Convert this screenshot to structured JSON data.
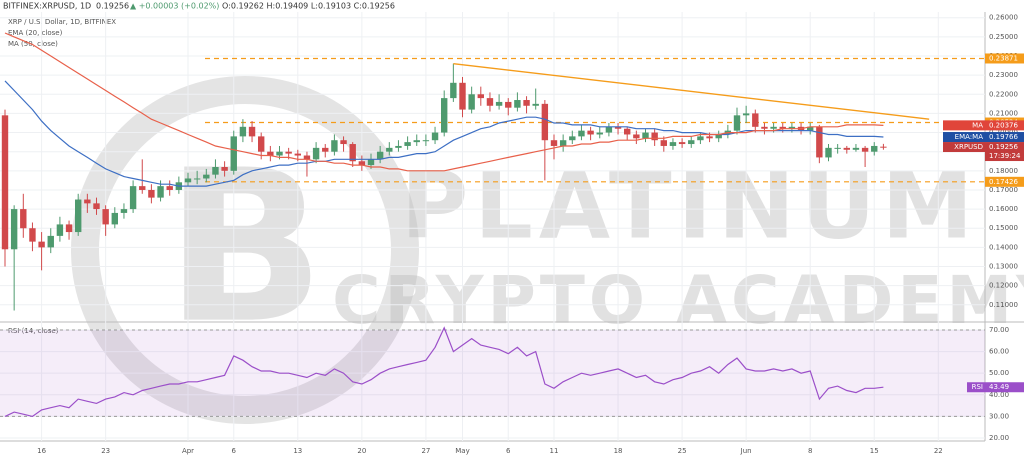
{
  "chart_data": {
    "type": "candlestick",
    "header": {
      "symbol": "BITFINEX:XRPUSD, 1D",
      "price": "0.19256",
      "change": "▲ +0.00003 (+0.02%)",
      "ohlc": "O:0.19262 H:0.19409 L:0.19103 C:0.19256"
    },
    "legend": [
      "XRP / U.S. Dollar, 1D, BITFINEX",
      "EMA (20, close)",
      "MA (50, close)"
    ],
    "watermark": {
      "line1": "PLATINUM",
      "line2": "CRYPTO ACADEMY"
    },
    "up_color": "#4e9a6e",
    "down_color": "#d1494b",
    "categories": [
      null,
      null,
      null,
      null,
      "16",
      null,
      null,
      null,
      null,
      null,
      null,
      "23",
      null,
      null,
      null,
      null,
      null,
      null,
      null,
      null,
      "Apr",
      null,
      null,
      null,
      null,
      "6",
      null,
      null,
      null,
      null,
      null,
      null,
      "13",
      null,
      null,
      null,
      null,
      null,
      null,
      "20",
      null,
      null,
      null,
      null,
      null,
      null,
      "27",
      null,
      null,
      null,
      "May",
      null,
      null,
      null,
      null,
      "6",
      null,
      null,
      null,
      null,
      "11",
      null,
      null,
      null,
      null,
      null,
      null,
      "18",
      null,
      null,
      null,
      null,
      null,
      null,
      "25",
      null,
      null,
      null,
      null,
      null,
      null,
      "Jun",
      null,
      null,
      null,
      null,
      null,
      null,
      "8",
      null,
      null,
      null,
      null,
      null,
      null,
      "15",
      null,
      null,
      null,
      null,
      null,
      null,
      "22"
    ],
    "ohlc": [
      [
        0.209,
        0.212,
        0.13,
        0.139
      ],
      [
        0.139,
        0.162,
        0.107,
        0.16
      ],
      [
        0.16,
        0.168,
        0.145,
        0.15
      ],
      [
        0.15,
        0.153,
        0.138,
        0.143
      ],
      [
        0.143,
        0.148,
        0.128,
        0.14
      ],
      [
        0.14,
        0.15,
        0.137,
        0.146
      ],
      [
        0.146,
        0.156,
        0.143,
        0.152
      ],
      [
        0.152,
        0.154,
        0.144,
        0.148
      ],
      [
        0.148,
        0.168,
        0.146,
        0.165
      ],
      [
        0.165,
        0.168,
        0.158,
        0.163
      ],
      [
        0.163,
        0.166,
        0.157,
        0.16
      ],
      [
        0.16,
        0.162,
        0.146,
        0.152
      ],
      [
        0.152,
        0.161,
        0.15,
        0.158
      ],
      [
        0.158,
        0.163,
        0.155,
        0.16
      ],
      [
        0.16,
        0.175,
        0.158,
        0.172
      ],
      [
        0.172,
        0.186,
        0.168,
        0.17
      ],
      [
        0.17,
        0.173,
        0.163,
        0.166
      ],
      [
        0.166,
        0.175,
        0.164,
        0.172
      ],
      [
        0.172,
        0.175,
        0.167,
        0.17
      ],
      [
        0.17,
        0.177,
        0.168,
        0.174
      ],
      [
        0.174,
        0.179,
        0.172,
        0.176
      ],
      [
        0.176,
        0.18,
        0.173,
        0.176
      ],
      [
        0.176,
        0.181,
        0.174,
        0.178
      ],
      [
        0.178,
        0.186,
        0.176,
        0.182
      ],
      [
        0.182,
        0.185,
        0.177,
        0.18
      ],
      [
        0.18,
        0.201,
        0.178,
        0.198
      ],
      [
        0.198,
        0.207,
        0.195,
        0.203
      ],
      [
        0.203,
        0.206,
        0.195,
        0.198
      ],
      [
        0.198,
        0.2,
        0.186,
        0.19
      ],
      [
        0.19,
        0.193,
        0.185,
        0.188
      ],
      [
        0.188,
        0.193,
        0.186,
        0.19
      ],
      [
        0.19,
        0.192,
        0.186,
        0.189
      ],
      [
        0.189,
        0.191,
        0.185,
        0.188
      ],
      [
        0.188,
        0.19,
        0.177,
        0.186
      ],
      [
        0.186,
        0.195,
        0.184,
        0.192
      ],
      [
        0.192,
        0.194,
        0.187,
        0.19
      ],
      [
        0.19,
        0.199,
        0.188,
        0.196
      ],
      [
        0.196,
        0.198,
        0.19,
        0.194
      ],
      [
        0.194,
        0.195,
        0.182,
        0.185
      ],
      [
        0.185,
        0.188,
        0.18,
        0.183
      ],
      [
        0.183,
        0.189,
        0.181,
        0.186
      ],
      [
        0.186,
        0.193,
        0.184,
        0.19
      ],
      [
        0.19,
        0.195,
        0.188,
        0.192
      ],
      [
        0.192,
        0.196,
        0.19,
        0.193
      ],
      [
        0.193,
        0.198,
        0.191,
        0.195
      ],
      [
        0.195,
        0.199,
        0.193,
        0.196
      ],
      [
        0.196,
        0.199,
        0.193,
        0.196
      ],
      [
        0.196,
        0.203,
        0.194,
        0.2
      ],
      [
        0.2,
        0.222,
        0.198,
        0.218
      ],
      [
        0.218,
        0.236,
        0.216,
        0.226
      ],
      [
        0.226,
        0.229,
        0.208,
        0.212
      ],
      [
        0.212,
        0.224,
        0.21,
        0.22
      ],
      [
        0.22,
        0.224,
        0.214,
        0.218
      ],
      [
        0.218,
        0.221,
        0.211,
        0.214
      ],
      [
        0.214,
        0.22,
        0.212,
        0.216
      ],
      [
        0.216,
        0.218,
        0.209,
        0.213
      ],
      [
        0.213,
        0.221,
        0.211,
        0.217
      ],
      [
        0.217,
        0.219,
        0.21,
        0.214
      ],
      [
        0.214,
        0.223,
        0.212,
        0.215
      ],
      [
        0.215,
        0.217,
        0.175,
        0.196
      ],
      [
        0.196,
        0.199,
        0.186,
        0.193
      ],
      [
        0.193,
        0.199,
        0.19,
        0.196
      ],
      [
        0.196,
        0.201,
        0.194,
        0.198
      ],
      [
        0.198,
        0.204,
        0.196,
        0.201
      ],
      [
        0.201,
        0.203,
        0.196,
        0.199
      ],
      [
        0.199,
        0.203,
        0.197,
        0.2
      ],
      [
        0.2,
        0.205,
        0.198,
        0.203
      ],
      [
        0.203,
        0.205,
        0.199,
        0.202
      ],
      [
        0.202,
        0.203,
        0.196,
        0.199
      ],
      [
        0.199,
        0.201,
        0.194,
        0.197
      ],
      [
        0.197,
        0.202,
        0.195,
        0.2
      ],
      [
        0.2,
        0.202,
        0.193,
        0.196
      ],
      [
        0.196,
        0.198,
        0.19,
        0.193
      ],
      [
        0.193,
        0.197,
        0.191,
        0.195
      ],
      [
        0.195,
        0.197,
        0.192,
        0.194
      ],
      [
        0.194,
        0.198,
        0.192,
        0.196
      ],
      [
        0.196,
        0.2,
        0.194,
        0.198
      ],
      [
        0.198,
        0.2,
        0.195,
        0.197
      ],
      [
        0.197,
        0.201,
        0.195,
        0.199
      ],
      [
        0.199,
        0.204,
        0.197,
        0.201
      ],
      [
        0.201,
        0.213,
        0.199,
        0.209
      ],
      [
        0.209,
        0.214,
        0.205,
        0.21
      ],
      [
        0.21,
        0.212,
        0.2,
        0.203
      ],
      [
        0.203,
        0.205,
        0.199,
        0.202
      ],
      [
        0.202,
        0.205,
        0.2,
        0.203
      ],
      [
        0.203,
        0.205,
        0.2,
        0.202
      ],
      [
        0.202,
        0.205,
        0.2,
        0.203
      ],
      [
        0.203,
        0.205,
        0.199,
        0.201
      ],
      [
        0.201,
        0.205,
        0.199,
        0.203
      ],
      [
        0.203,
        0.204,
        0.184,
        0.187
      ],
      [
        0.187,
        0.194,
        0.185,
        0.192
      ],
      [
        0.192,
        0.194,
        0.189,
        0.192
      ],
      [
        0.192,
        0.193,
        0.189,
        0.191
      ],
      [
        0.191,
        0.194,
        0.19,
        0.192
      ],
      [
        0.192,
        0.193,
        0.182,
        0.19
      ],
      [
        0.19,
        0.195,
        0.188,
        0.193
      ],
      [
        0.19262,
        0.19409,
        0.19103,
        0.19256
      ],
      null,
      null,
      null,
      null,
      null,
      null
    ],
    "series": [
      {
        "name": "EMA (20, close)",
        "color": "#3d6fc4",
        "values": [
          0.227,
          0.222,
          0.217,
          0.212,
          0.206,
          0.201,
          0.197,
          0.193,
          0.19,
          0.187,
          0.184,
          0.181,
          0.179,
          0.177,
          0.176,
          0.175,
          0.174,
          0.173,
          0.173,
          0.172,
          0.172,
          0.172,
          0.172,
          0.173,
          0.174,
          0.175,
          0.178,
          0.18,
          0.181,
          0.182,
          0.183,
          0.183,
          0.184,
          0.184,
          0.185,
          0.185,
          0.186,
          0.186,
          0.186,
          0.186,
          0.186,
          0.186,
          0.187,
          0.187,
          0.188,
          0.189,
          0.189,
          0.19,
          0.193,
          0.196,
          0.198,
          0.2,
          0.202,
          0.203,
          0.205,
          0.206,
          0.207,
          0.208,
          0.208,
          0.207,
          0.205,
          0.205,
          0.204,
          0.204,
          0.204,
          0.203,
          0.203,
          0.203,
          0.203,
          0.202,
          0.202,
          0.202,
          0.201,
          0.201,
          0.2,
          0.2,
          0.2,
          0.199,
          0.199,
          0.199,
          0.2,
          0.201,
          0.201,
          0.201,
          0.201,
          0.201,
          0.201,
          0.201,
          0.201,
          0.2,
          0.199,
          0.199,
          0.198,
          0.198,
          0.198,
          0.198,
          0.19766,
          null,
          null,
          null,
          null,
          null,
          null
        ]
      },
      {
        "name": "MA (50, close)",
        "color": "#e8604a",
        "values": [
          0.252,
          0.25,
          0.248,
          0.246,
          0.243,
          0.24,
          0.237,
          0.234,
          0.231,
          0.228,
          0.225,
          0.222,
          0.219,
          0.216,
          0.213,
          0.21,
          0.207,
          0.205,
          0.203,
          0.201,
          0.199,
          0.197,
          0.195,
          0.193,
          0.192,
          0.191,
          0.19,
          0.189,
          0.188,
          0.188,
          0.187,
          0.187,
          0.186,
          0.186,
          0.185,
          0.185,
          0.184,
          0.184,
          0.183,
          0.183,
          0.182,
          0.182,
          0.181,
          0.181,
          0.18,
          0.18,
          0.18,
          0.18,
          0.18,
          0.181,
          0.182,
          0.183,
          0.184,
          0.185,
          0.186,
          0.187,
          0.188,
          0.189,
          0.19,
          0.191,
          0.192,
          0.193,
          0.193,
          0.194,
          0.194,
          0.195,
          0.195,
          0.196,
          0.196,
          0.196,
          0.197,
          0.197,
          0.197,
          0.198,
          0.198,
          0.198,
          0.199,
          0.199,
          0.199,
          0.2,
          0.2,
          0.2,
          0.201,
          0.201,
          0.201,
          0.202,
          0.202,
          0.202,
          0.203,
          0.203,
          0.203,
          0.203,
          0.204,
          0.204,
          0.204,
          0.204,
          0.20376,
          null,
          null,
          null,
          null,
          null,
          null
        ]
      }
    ],
    "ylim": [
      0.101,
      0.263
    ],
    "yticks": [
      {
        "value": 0.11,
        "label": "0.11000"
      },
      {
        "value": 0.12,
        "label": "0.12000"
      },
      {
        "value": 0.13,
        "label": "0.13000"
      },
      {
        "value": 0.14,
        "label": "0.14000"
      },
      {
        "value": 0.15,
        "label": "0.15000"
      },
      {
        "value": 0.16,
        "label": "0.16000"
      },
      {
        "value": 0.17,
        "label": "0.17000"
      },
      {
        "value": 0.18,
        "label": "0.18000"
      },
      {
        "value": 0.19,
        "label": "0.19000"
      },
      {
        "value": 0.2,
        "label": "0.20000"
      },
      {
        "value": 0.21,
        "label": "0.21000"
      },
      {
        "value": 0.22,
        "label": "0.22000"
      },
      {
        "value": 0.23,
        "label": "0.23000"
      },
      {
        "value": 0.24,
        "label": "0.24000"
      },
      {
        "value": 0.25,
        "label": "0.25000"
      },
      {
        "value": 0.26,
        "label": "0.26000"
      }
    ],
    "grid": true,
    "levels": {
      "color": "#f59c1a",
      "lines": [
        0.23871,
        0.20524,
        0.17426
      ]
    },
    "trendline": {
      "color": "#f59c1a",
      "from": 0.236,
      "to": 0.207
    },
    "badges": [
      {
        "label": "MA",
        "value": 0.20376,
        "color": "#e0453a"
      },
      {
        "label": "EMA:MA",
        "value": 0.19766,
        "color": "#1f4fa3"
      },
      {
        "label": "XRPUSD",
        "value": 0.19256,
        "color": "#c23b3b",
        "time": "17:39:24"
      }
    ],
    "rsi": {
      "title": "RSI (14, close)",
      "color": "#9b4fc9",
      "values": [
        30,
        32,
        31,
        30,
        33,
        34,
        35,
        34,
        38,
        37,
        36,
        38,
        39,
        41,
        40,
        42,
        43,
        44,
        45,
        45,
        46,
        46,
        47,
        48,
        49,
        58,
        56,
        53,
        51,
        51,
        50,
        50,
        49,
        48,
        50,
        49,
        52,
        50,
        46,
        45,
        47,
        50,
        52,
        53,
        54,
        55,
        56,
        62,
        71,
        60,
        63,
        66,
        63,
        62,
        61,
        59,
        62,
        58,
        60,
        45,
        43,
        46,
        48,
        50,
        49,
        50,
        51,
        52,
        50,
        48,
        49,
        46,
        45,
        47,
        48,
        50,
        51,
        53,
        50,
        54,
        57,
        52,
        51,
        51,
        52,
        51,
        52,
        50,
        51,
        38,
        43,
        44,
        42,
        41,
        43,
        43,
        43.49,
        null,
        null,
        null,
        null,
        null,
        null
      ],
      "ylim": [
        18.6,
        73.7
      ],
      "yticks": [
        {
          "value": 20,
          "label": "20.00"
        },
        {
          "value": 30,
          "label": "30.00"
        },
        {
          "value": 40,
          "label": "40.00"
        },
        {
          "value": 50,
          "label": "50.00"
        },
        {
          "value": 60,
          "label": "60.00"
        },
        {
          "value": 70,
          "label": "70.00"
        }
      ],
      "band": [
        30,
        70
      ],
      "badge": {
        "label": "RSI",
        "value": 43.49
      }
    }
  }
}
